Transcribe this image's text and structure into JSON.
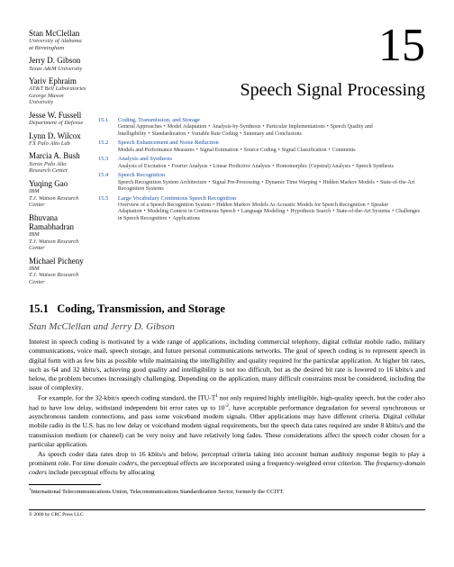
{
  "chapter": {
    "number": "15",
    "title": "Speech Signal Processing"
  },
  "authors": [
    {
      "name": "Stan McClellan",
      "affil": "University of Alabama at Birmingham"
    },
    {
      "name": "Jerry D. Gibson",
      "affil": "Texas A&M University"
    },
    {
      "name": "Yariv Ephraim",
      "affil": "AT&T Bell Laboratories\nGeorge Mason University"
    },
    {
      "name": "Jesse W. Fussell",
      "affil": "Department of Defense"
    },
    {
      "name": "Lynn D. Wilcox",
      "affil": "FX Palo Alto Lab"
    },
    {
      "name": "Marcia A. Bush",
      "affil": "Xerox Palo Alto Research Center"
    },
    {
      "name": "Yuqing Gao",
      "affil": "IBM\nT.J. Watson Research Center"
    },
    {
      "name": "Bhuvana Ramabhadran",
      "affil": "IBM\nT.J. Watson Research Center"
    },
    {
      "name": "Michael Picheny",
      "affil": "IBM\nT.J. Watson Research Center"
    }
  ],
  "toc": [
    {
      "num": "15.1",
      "title": "Coding, Transmission, and Storage",
      "sub": "General Approaches • Model Adaptation • Analysis-by-Synthesis • Particular Implementations • Speech Quality and Intelligibility • Standardization • Variable Rate Coding • Summary and Conclusions"
    },
    {
      "num": "15.2",
      "title": "Speech Enhancement and Noise Reduction",
      "sub": "Models and Performance Measures • Signal Estimation • Source Coding • Signal Classification • Comments"
    },
    {
      "num": "15.3",
      "title": "Analysis and Synthesis",
      "sub": "Analysis of Excitation • Fourier Analysis • Linear Predictive Analysis • Homomorphic (Cepstral) Analysis • Speech Synthesis"
    },
    {
      "num": "15.4",
      "title": "Speech Recognition",
      "sub": "Speech Recognition System Architecture • Signal Pre-Processing • Dynamic Time Warping • Hidden Markov Models • State-of-the-Art Recognition Systems"
    },
    {
      "num": "15.5",
      "title": "Large Vocabulary Continuous Speech Recognition",
      "sub": "Overview of a Speech Recognition System • Hidden Markov Models As Acoustic Models for Speech Recognition • Speaker Adaptation • Modeling Context in Continuous Speech • Language Modeling • Hypothesis Search • State-of-the-Art Systems • Challenges in Speech Recognition • Applications"
    }
  ],
  "section": {
    "num": "15.1",
    "title": "Coding, Transmission, and Storage",
    "authors": "Stan McClellan and Jerry D. Gibson",
    "p1": "Interest in speech coding is motivated by a wide range of applications, including commercial telephony, digital cellular mobile radio, military communications, voice mail, speech storage, and future personal communications networks. The goal of speech coding is to represent speech in digital form with as few bits as possible while maintaining the intelligibility and quality required for the particular application. At higher bit rates, such as 64 and 32 kbits/s, achieving good quality and intelligibility is not too difficult, but as the desired bit rate is lowered to 16 kbits/s and below, the problem becomes increasingly challenging. Depending on the application, many difficult constraints must be considered, including the issue of complexity.",
    "p2a": "For example, for the 32-kbit/s speech coding standard, the ITU-T",
    "p2b": " not only required highly intelligible, high-quality speech, but the coder also had to have low delay, withstand independent bit error rates up to 10",
    "p2c": ", have acceptable performance degradation for several synchronous or asynchronous tandem connections, and pass some voiceband modem signals. Other applications may have different criteria. Digital cellular mobile radio in the U.S. has no low delay or voiceband modem signal requirements, but the speech data rates required are under 8 kbits/s and the transmission medium (or channel) can be very noisy and have relatively long fades. These considerations affect the speech coder chosen for a particular application.",
    "p3a": "As speech coder data rates drop to 16 kbits/s and below, perceptual criteria taking into account human auditory response begin to play a prominent role. For ",
    "p3i1": "time domain coders",
    "p3b": ", the perceptual effects are incorporated using a frequency-weighted error criterion. The ",
    "p3i2": "frequency-domain coders",
    "p3c": " include perceptual effects by allocating"
  },
  "footnote": {
    "marker": "1",
    "text": "International Telecommunications Union, Telecommunications Standardization Sector, formerly the CCITT."
  },
  "footer": "© 2000 by CRC Press LLC"
}
